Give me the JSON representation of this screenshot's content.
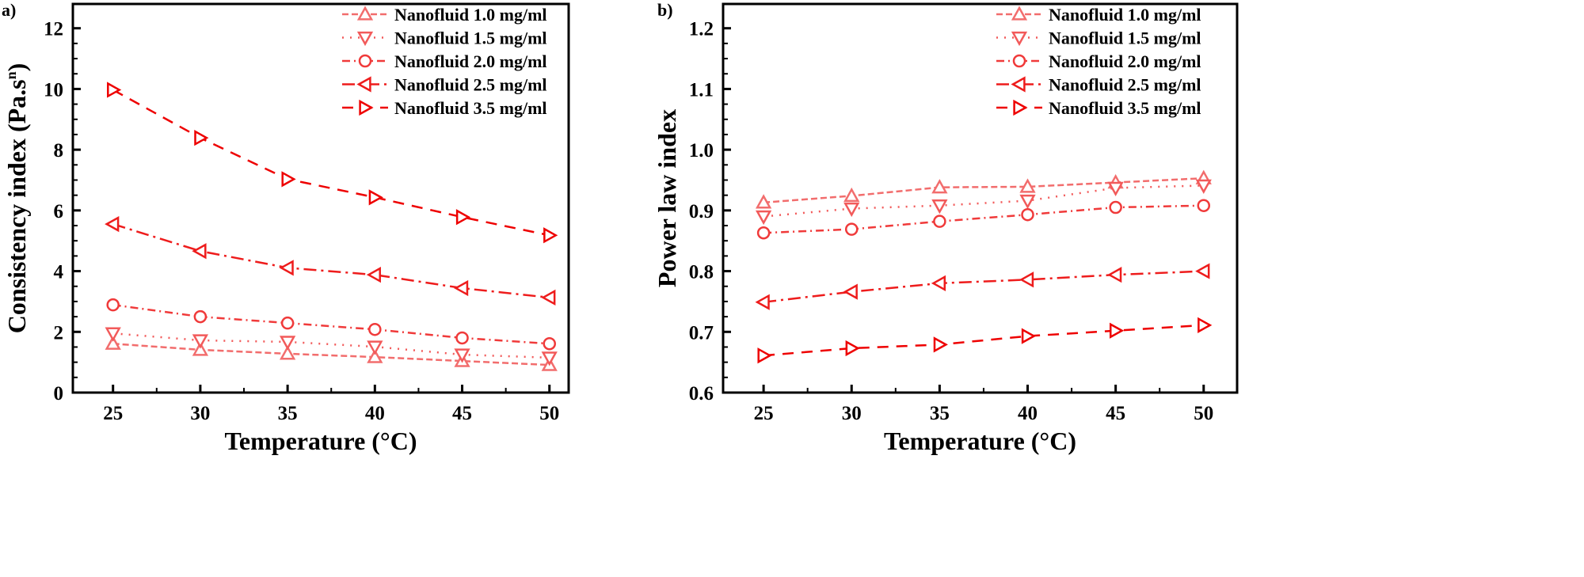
{
  "chart_data": [
    {
      "type": "line",
      "panel_label": "a)",
      "xlabel": "Temperature (°C)",
      "ylabel": "Consistency index (Pa.s",
      "ylabel_sup": "n",
      "ylabel_close": ")",
      "x": [
        25,
        30,
        35,
        40,
        45,
        50
      ],
      "xlim": [
        22.7,
        51.1
      ],
      "ylim": [
        0,
        12.8
      ],
      "xticks": [
        25,
        30,
        35,
        40,
        45,
        50
      ],
      "yticks": [
        0,
        2,
        4,
        6,
        8,
        10,
        12
      ],
      "ytick_decimals": 0,
      "grid": false,
      "legend_position": "top-right",
      "series": [
        {
          "name": "Nanofluid 1.0 mg/ml",
          "values": [
            1.61,
            1.41,
            1.28,
            1.17,
            1.04,
            0.91
          ],
          "color": "#f26d6d",
          "marker": "triangle-up",
          "dash": "8,4"
        },
        {
          "name": "Nanofluid 1.5 mg/ml",
          "values": [
            1.95,
            1.72,
            1.67,
            1.51,
            1.25,
            1.15
          ],
          "color": "#f25a5a",
          "marker": "triangle-down",
          "dash": "2,8"
        },
        {
          "name": "Nanofluid 2.0 mg/ml",
          "values": [
            2.89,
            2.5,
            2.29,
            2.08,
            1.8,
            1.61
          ],
          "color": "#f03a3a",
          "marker": "circle",
          "dash": "10,5,2,5"
        },
        {
          "name": "Nanofluid 2.5 mg/ml",
          "values": [
            5.55,
            4.66,
            4.11,
            3.88,
            3.44,
            3.13
          ],
          "color": "#ee1c1c",
          "marker": "triangle-left",
          "dash": "16,6,3,6"
        },
        {
          "name": "Nanofluid 3.5 mg/ml",
          "values": [
            9.97,
            8.39,
            7.03,
            6.43,
            5.78,
            5.18
          ],
          "color": "#ee0000",
          "marker": "triangle-right",
          "dash": "14,10"
        }
      ]
    },
    {
      "type": "line",
      "panel_label": "b)",
      "xlabel": "Temperature (°C)",
      "ylabel": "Power law index",
      "x": [
        25,
        30,
        35,
        40,
        45,
        50
      ],
      "xlim": [
        22.7,
        51.9
      ],
      "ylim": [
        0.6,
        1.24
      ],
      "xticks": [
        25,
        30,
        35,
        40,
        45,
        50
      ],
      "yticks": [
        0.6,
        0.7,
        0.8,
        0.9,
        1.0,
        1.1,
        1.2
      ],
      "ytick_decimals": 1,
      "grid": false,
      "legend_position": "top-right",
      "series": [
        {
          "name": "Nanofluid 1.0 mg/ml",
          "values": [
            0.913,
            0.924,
            0.938,
            0.939,
            0.946,
            0.953
          ],
          "color": "#f26d6d",
          "marker": "triangle-up",
          "dash": "8,4"
        },
        {
          "name": "Nanofluid 1.5 mg/ml",
          "values": [
            0.89,
            0.903,
            0.908,
            0.916,
            0.937,
            0.941
          ],
          "color": "#f25a5a",
          "marker": "triangle-down",
          "dash": "2,8"
        },
        {
          "name": "Nanofluid 2.0 mg/ml",
          "values": [
            0.863,
            0.869,
            0.882,
            0.893,
            0.905,
            0.908
          ],
          "color": "#f03a3a",
          "marker": "circle",
          "dash": "10,5,2,5"
        },
        {
          "name": "Nanofluid 2.5 mg/ml",
          "values": [
            0.749,
            0.766,
            0.78,
            0.786,
            0.794,
            0.8
          ],
          "color": "#ee1c1c",
          "marker": "triangle-left",
          "dash": "16,6,3,6"
        },
        {
          "name": "Nanofluid 3.5 mg/ml",
          "values": [
            0.661,
            0.673,
            0.679,
            0.693,
            0.702,
            0.711
          ],
          "color": "#ee0000",
          "marker": "triangle-right",
          "dash": "14,10"
        }
      ]
    }
  ]
}
